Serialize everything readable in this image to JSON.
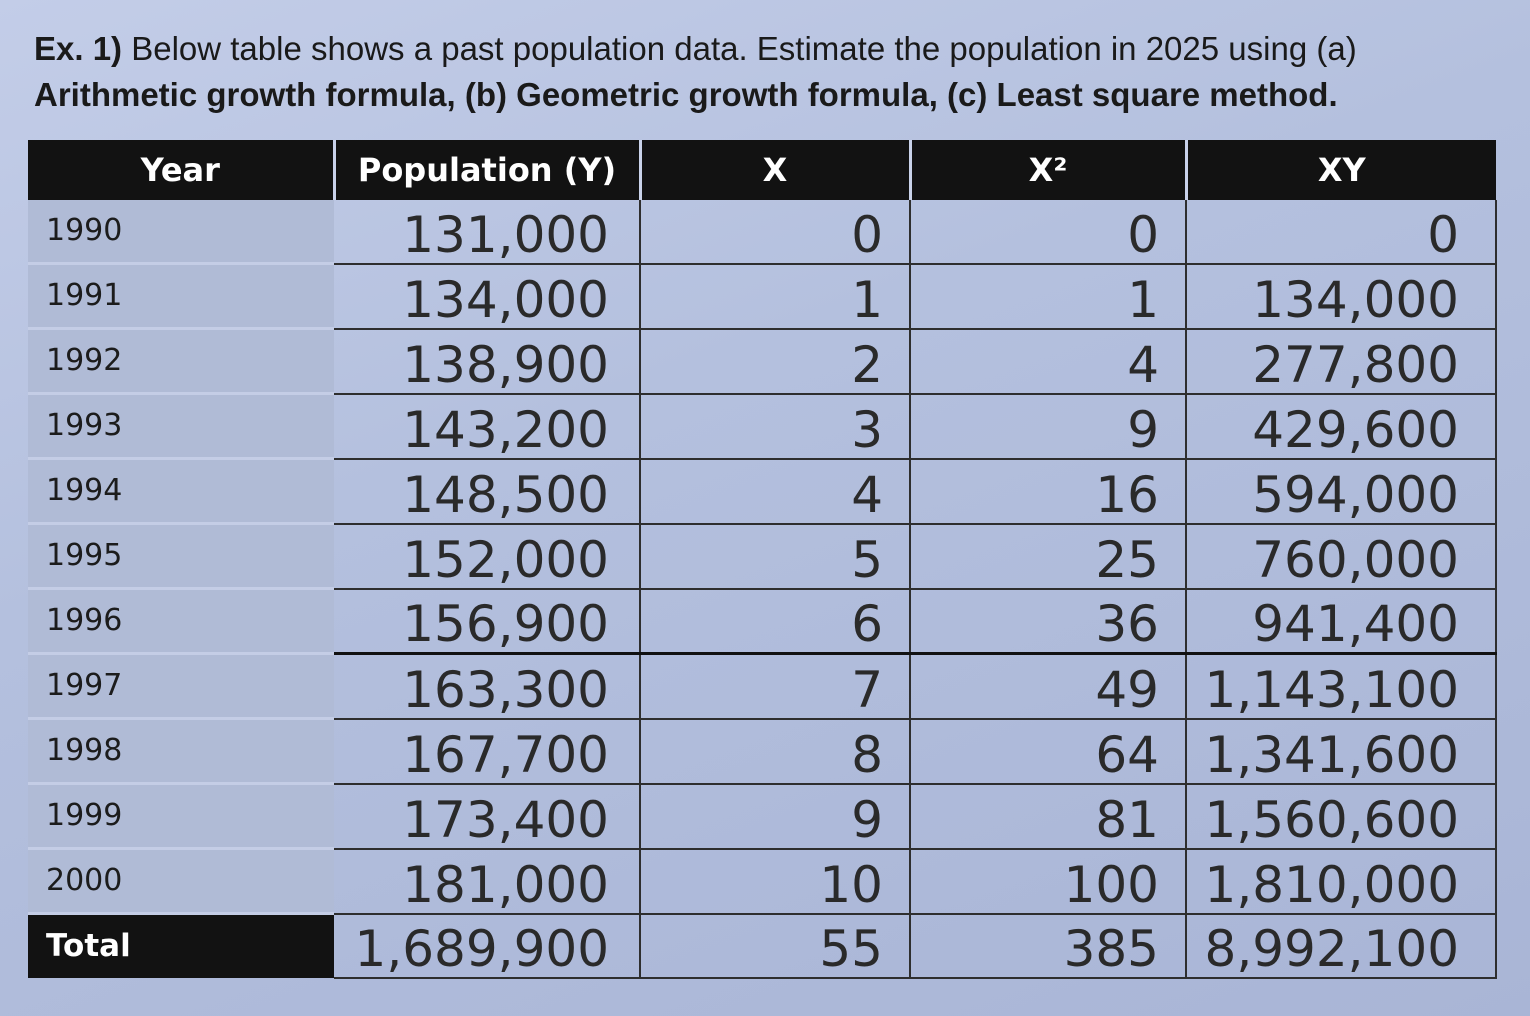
{
  "question": {
    "label": "Ex. 1)",
    "text": " Below table shows a past population data. Estimate the population in 2025 using (a) ",
    "bold_text": "Arithmetic growth formula, (b) Geometric growth formula, (c) Least square method."
  },
  "table": {
    "headers": {
      "year": "Year",
      "population": "Population (Y)",
      "x": "X",
      "x2": "X²",
      "xy": "XY"
    },
    "rows": [
      {
        "year": "1990",
        "population": "131,000",
        "x": "0",
        "x2": "0",
        "xy": "0"
      },
      {
        "year": "1991",
        "population": "134,000",
        "x": "1",
        "x2": "1",
        "xy": "134,000"
      },
      {
        "year": "1992",
        "population": "138,900",
        "x": "2",
        "x2": "4",
        "xy": "277,800"
      },
      {
        "year": "1993",
        "population": "143,200",
        "x": "3",
        "x2": "9",
        "xy": "429,600"
      },
      {
        "year": "1994",
        "population": "148,500",
        "x": "4",
        "x2": "16",
        "xy": "594,000"
      },
      {
        "year": "1995",
        "population": "152,000",
        "x": "5",
        "x2": "25",
        "xy": "760,000"
      },
      {
        "year": "1996",
        "population": "156,900",
        "x": "6",
        "x2": "36",
        "xy": "941,400"
      },
      {
        "year": "1997",
        "population": "163,300",
        "x": "7",
        "x2": "49",
        "xy": "1,143,100"
      },
      {
        "year": "1998",
        "population": "167,700",
        "x": "8",
        "x2": "64",
        "xy": "1,341,600"
      },
      {
        "year": "1999",
        "population": "173,400",
        "x": "9",
        "x2": "81",
        "xy": "1,560,600"
      },
      {
        "year": "2000",
        "population": "181,000",
        "x": "10",
        "x2": "100",
        "xy": "1,810,000"
      }
    ],
    "total": {
      "label": "Total",
      "population": "1,689,900",
      "x": "55",
      "x2": "385",
      "xy": "8,992,100"
    }
  }
}
